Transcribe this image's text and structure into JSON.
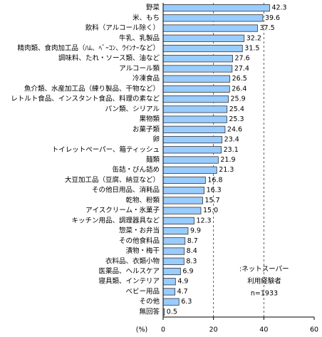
{
  "chart_data": {
    "type": "bar",
    "orientation": "horizontal",
    "categories": [
      "野菜",
      "米、もち",
      "飲料（アルコール除く）",
      "牛乳、乳製品",
      "精肉類、食肉加工品（ﾊﾑ、ﾍﾞｰｺﾝ、ｳｲﾝﾅｰなど）",
      "調味料、たれ・ソース類、油など",
      "アルコール類",
      "冷凍食品",
      "魚介類、水産加工品（練り製品、干物など）",
      "レトルト食品、インスタント食品、料理の素など",
      "パン類、シリアル",
      "果物類",
      "お菓子類",
      "卵",
      "トイレットペーパー、箱ティッシュ",
      "麺類",
      "缶詰・びん詰め",
      "大豆加工品（豆腐、納豆など）",
      "その他日用品、消耗品",
      "乾物、粉類",
      "アイスクリーム・氷菓子",
      "キッチン用品、調理器具など",
      "惣菜・お弁当",
      "その他食料品",
      "漬物・梅干",
      "衣料品、衣類小物",
      "医薬品、ヘルスケア",
      "寝具類、インテリア",
      "ベビー用品",
      "その他",
      "無回答"
    ],
    "values": [
      42.3,
      39.6,
      37.5,
      32.2,
      31.5,
      27.6,
      27.4,
      26.5,
      26.4,
      25.9,
      25.4,
      25.3,
      24.6,
      23.4,
      23.1,
      21.9,
      21.3,
      16.8,
      16.3,
      15.7,
      15.0,
      12.3,
      9.9,
      8.7,
      8.4,
      8.3,
      6.9,
      4.9,
      4.7,
      6.3,
      0.5
    ],
    "value_labels": [
      "42.3",
      "39.6",
      "37.5",
      "32.2",
      "31.5",
      "27.6",
      "27.4",
      "26.5",
      "26.4",
      "25.9",
      "25.4",
      "25.3",
      "24.6",
      "23.4",
      "23.1",
      "21.9",
      "21.3",
      "16.8",
      "16.3",
      "15.7",
      "15.0",
      "12.3",
      "9.9",
      "8.7",
      "8.4",
      "8.3",
      "6.9",
      "4.9",
      "4.7",
      "6.3",
      "0.5"
    ],
    "color": "#99ccff",
    "xlabel": "(%)",
    "xlim": [
      0,
      60
    ],
    "xticks": [
      0,
      20,
      40,
      60
    ],
    "grid": true,
    "annotation": [
      ":ネットスーパー",
      "利用経験者",
      "n=1933"
    ]
  }
}
